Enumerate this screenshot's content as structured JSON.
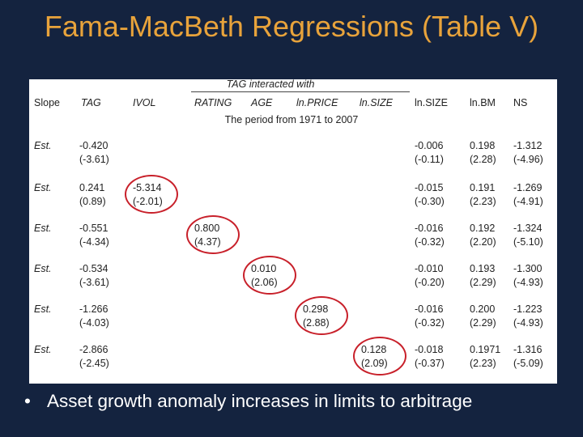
{
  "title": "Fama-MacBeth Regressions (Table V)",
  "table": {
    "group_header": "TAG interacted with",
    "columns": [
      "Slope",
      "TAG",
      "IVOL",
      "RATING",
      "AGE",
      "ln.PRICE",
      "ln.SIZE",
      "ln.SIZE",
      "ln.BM",
      "NS"
    ],
    "period": "The period from 1971 to 2007",
    "rows": [
      {
        "label": "Est.",
        "TAG": [
          "-0.420",
          "(-3.61)"
        ],
        "interaction": null,
        "lnsize": [
          "-0.006",
          "(-0.11)"
        ],
        "lnbm": [
          "0.198",
          "(2.28)"
        ],
        "ns": [
          "-1.312",
          "(-4.96)"
        ]
      },
      {
        "label": "Est.",
        "TAG": [
          "0.241",
          "(0.89)"
        ],
        "interaction": [
          "-5.314",
          "(-2.01)"
        ],
        "lnsize": [
          "-0.015",
          "(-0.30)"
        ],
        "lnbm": [
          "0.191",
          "(2.23)"
        ],
        "ns": [
          "-1.269",
          "(-4.91)"
        ]
      },
      {
        "label": "Est.",
        "TAG": [
          "-0.551",
          "(-4.34)"
        ],
        "interaction": [
          "0.800",
          "(4.37)"
        ],
        "lnsize": [
          "-0.016",
          "(-0.32)"
        ],
        "lnbm": [
          "0.192",
          "(2.20)"
        ],
        "ns": [
          "-1.324",
          "(-5.10)"
        ]
      },
      {
        "label": "Est.",
        "TAG": [
          "-0.534",
          "(-3.61)"
        ],
        "interaction": [
          "0.010",
          "(2.06)"
        ],
        "lnsize": [
          "-0.010",
          "(-0.20)"
        ],
        "lnbm": [
          "0.193",
          "(2.29)"
        ],
        "ns": [
          "-1.300",
          "(-4.93)"
        ]
      },
      {
        "label": "Est.",
        "TAG": [
          "-1.266",
          "(-4.03)"
        ],
        "interaction": [
          "0.298",
          "(2.88)"
        ],
        "lnsize": [
          "-0.016",
          "(-0.32)"
        ],
        "lnbm": [
          "0.200",
          "(2.29)"
        ],
        "ns": [
          "-1.223",
          "(-4.93)"
        ]
      },
      {
        "label": "Est.",
        "TAG": [
          "-2.866",
          "(-2.45)"
        ],
        "interaction": [
          "0.128",
          "(2.09)"
        ],
        "lnsize": [
          "-0.018",
          "(-0.37)"
        ],
        "lnbm": [
          "0.1971",
          "(2.23)"
        ],
        "ns": [
          "-1.316",
          "(-5.09)"
        ]
      }
    ]
  },
  "bullet": {
    "symbol": "•",
    "text": "Asset growth anomaly increases in limits to arbitrage"
  },
  "colors": {
    "background": "#14233f",
    "title": "#e8a33b",
    "oval": "#c8202a",
    "bullet_text": "#ffffff"
  }
}
